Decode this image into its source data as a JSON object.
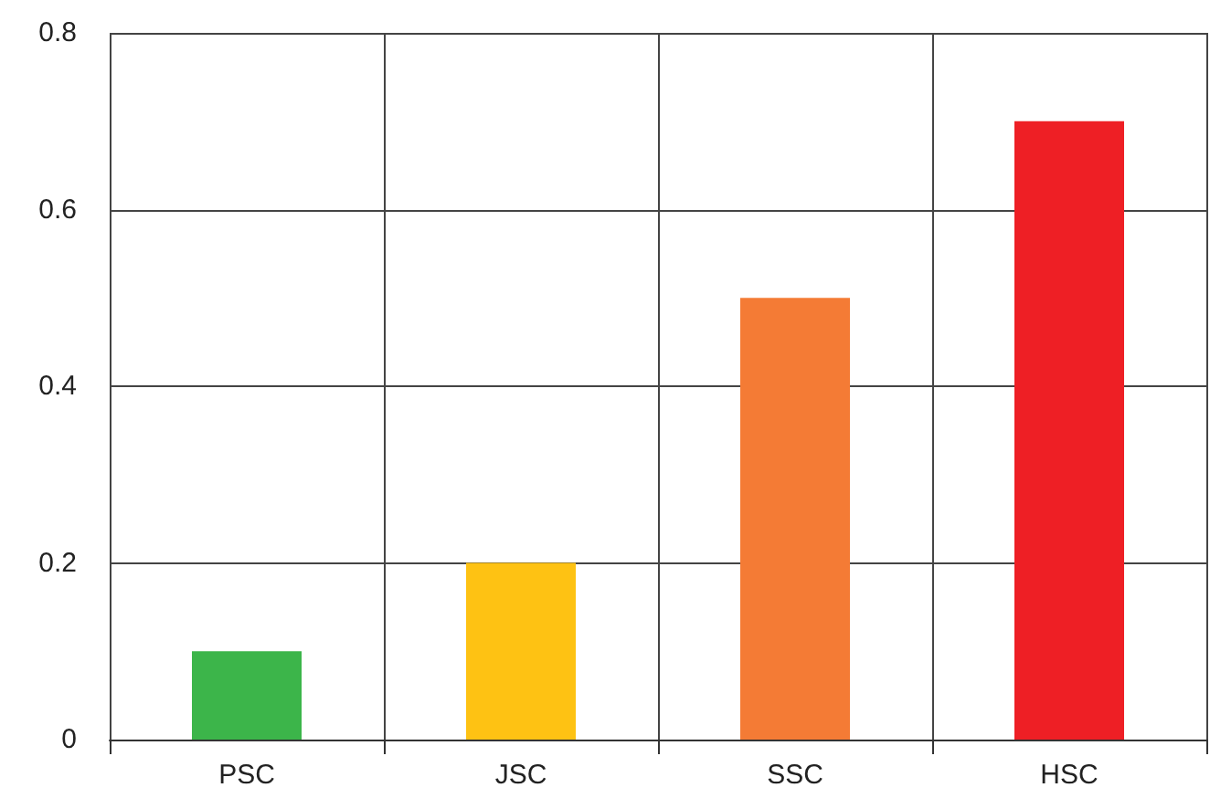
{
  "chart_data": {
    "type": "bar",
    "categories": [
      "PSC",
      "JSC",
      "SSC",
      "HSC"
    ],
    "values": [
      0.1,
      0.2,
      0.5,
      0.7
    ],
    "colors": [
      "#3cb54a",
      "#fec213",
      "#f47b35",
      "#ee1f25"
    ],
    "ylim": [
      0,
      0.8
    ],
    "yticks": [
      0,
      0.2,
      0.4,
      0.6,
      0.8
    ],
    "grid": true
  }
}
